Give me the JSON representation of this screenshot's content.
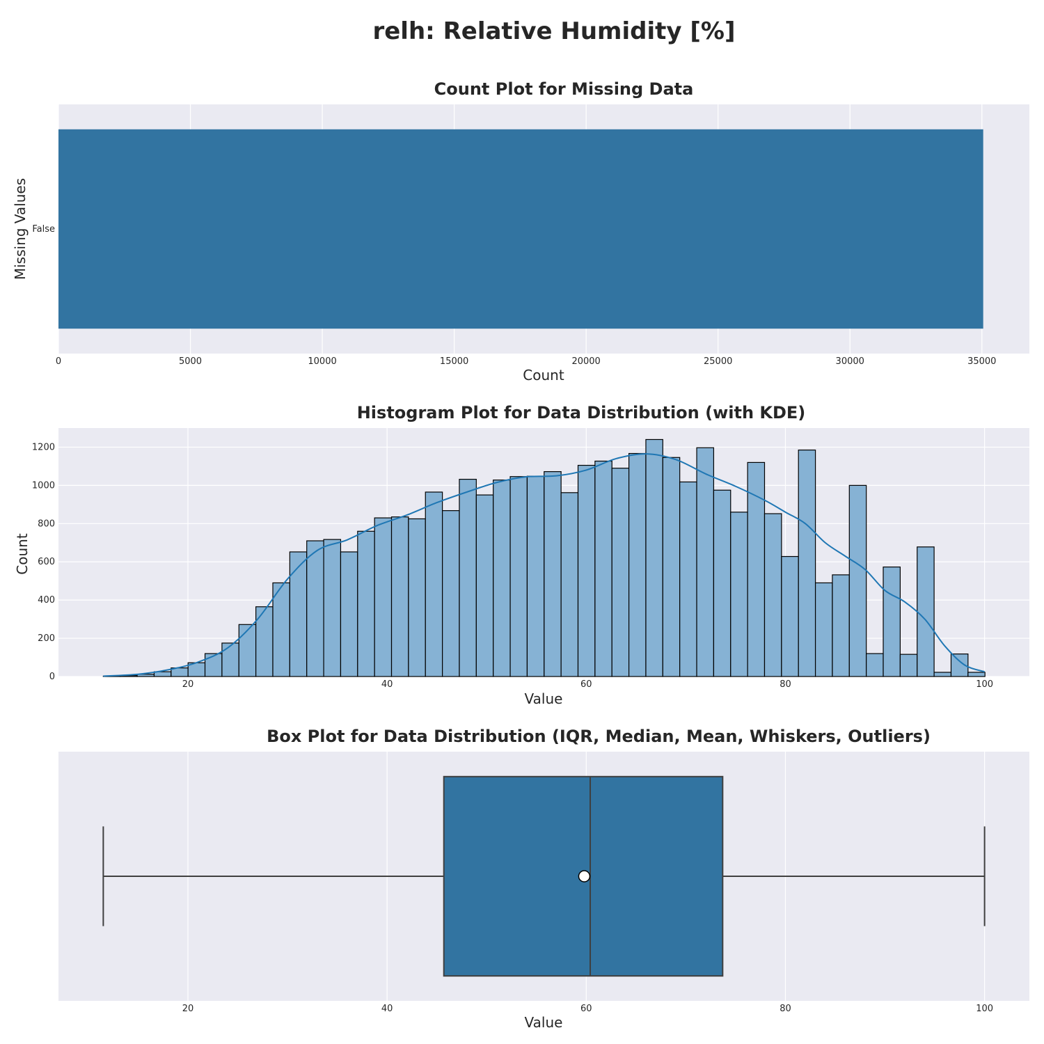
{
  "figure": {
    "suptitle": "relh: Relative Humidity [%]"
  },
  "colors": {
    "bar": "#3274a1",
    "hist": "#86b2d4",
    "kde": "#1f77b4",
    "panel": "#eaeaf2",
    "grid": "#ffffff",
    "edge": "#000000",
    "box_line": "#3f3f3f"
  },
  "chart_data": [
    {
      "type": "bar",
      "orientation": "horizontal",
      "title": "Count Plot for Missing Data",
      "xlabel": "Count",
      "ylabel": "Missing Values",
      "categories": [
        "False"
      ],
      "values": [
        35050
      ],
      "xlim": [
        0,
        36800
      ],
      "xticks": [
        0,
        5000,
        10000,
        15000,
        20000,
        25000,
        30000,
        35000
      ],
      "grid": true
    },
    {
      "type": "histogram",
      "title": "Histogram Plot for Data Distribution (with KDE)",
      "xlabel": "Value",
      "ylabel": "Count",
      "xlim": [
        7,
        104.5
      ],
      "ylim": [
        0,
        1300
      ],
      "xticks": [
        20,
        40,
        60,
        80,
        100
      ],
      "yticks": [
        0,
        200,
        400,
        600,
        800,
        1000,
        1200
      ],
      "bin_start": 11.5,
      "bin_width": 1.7027,
      "counts": [
        2,
        5,
        12,
        25,
        45,
        72,
        120,
        175,
        272,
        365,
        490,
        652,
        710,
        717,
        652,
        760,
        830,
        835,
        825,
        965,
        868,
        1032,
        950,
        1028,
        1046,
        1048,
        1072,
        962,
        1105,
        1127,
        1090,
        1167,
        1240,
        1146,
        1018,
        1197,
        975,
        860,
        1120,
        852,
        628,
        1185,
        490,
        532,
        1000,
        120,
        573,
        116,
        678,
        22,
        118,
        22
      ],
      "kde": {
        "x": [
          11.5,
          15,
          18,
          21,
          24,
          27,
          30,
          33,
          36,
          39,
          42,
          45,
          48,
          51,
          54,
          57,
          60,
          63,
          66,
          69,
          72,
          75,
          78,
          80,
          82,
          84,
          86,
          88,
          90,
          92,
          94,
          96,
          98,
          100
        ],
        "y": [
          2,
          12,
          35,
          75,
          150,
          300,
          510,
          660,
          715,
          790,
          845,
          910,
          965,
          1015,
          1045,
          1050,
          1080,
          1140,
          1165,
          1135,
          1060,
          995,
          920,
          860,
          800,
          700,
          630,
          560,
          450,
          390,
          300,
          160,
          60,
          25
        ]
      },
      "grid": true
    },
    {
      "type": "box",
      "title": "Box Plot for Data Distribution (IQR, Median, Mean, Whiskers, Outliers)",
      "xlabel": "Value",
      "xlim": [
        7,
        104.5
      ],
      "xticks": [
        20,
        40,
        60,
        80,
        100
      ],
      "whisker_low": 11.5,
      "q1": 45.7,
      "median": 60.4,
      "mean": 59.8,
      "q3": 73.7,
      "whisker_high": 100,
      "grid": true
    }
  ]
}
